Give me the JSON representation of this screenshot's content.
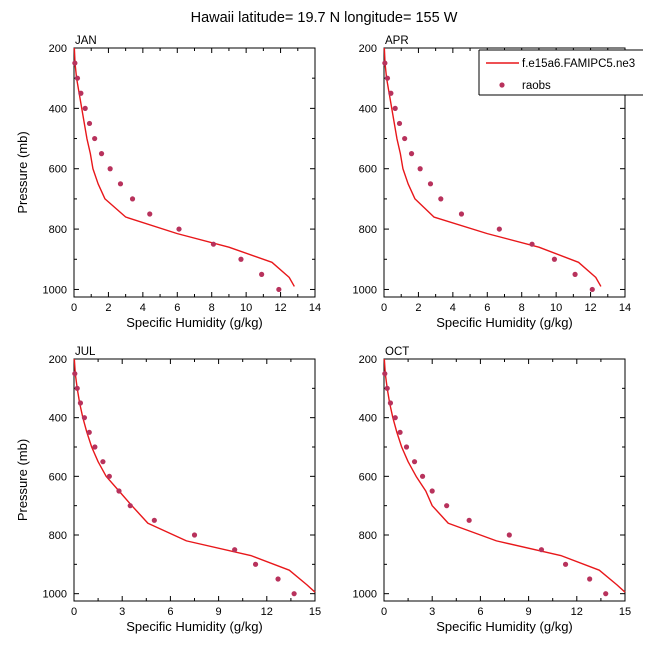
{
  "title": "Hawaii  latitude= 19.7 N longitude= 155 W",
  "legend": {
    "entries": [
      {
        "label": "f.e15a6.FAMIPC5.ne3",
        "color": "#e8171a",
        "kind": "line"
      },
      {
        "label": "raobs",
        "color": "#b8325c",
        "kind": "marker"
      }
    ]
  },
  "chart_data": [
    {
      "type": "line",
      "panel_label": "JAN",
      "xlabel": "Specific Humidity (g/kg)",
      "ylabel": "Pressure (mb)",
      "xlim": [
        0,
        14
      ],
      "ylim": [
        200,
        1025
      ],
      "y_inverted": true,
      "x_ticks": [
        0,
        2,
        4,
        6,
        8,
        10,
        12,
        14
      ],
      "y_ticks": [
        200,
        400,
        600,
        800,
        1000
      ],
      "series": [
        {
          "name": "f.e15a6.FAMIPC5.ne3",
          "style": "line",
          "color": "#e8171a",
          "points": [
            [
              0.02,
              200
            ],
            [
              0.06,
              250
            ],
            [
              0.15,
              300
            ],
            [
              0.3,
              350
            ],
            [
              0.45,
              400
            ],
            [
              0.6,
              450
            ],
            [
              0.75,
              500
            ],
            [
              0.95,
              550
            ],
            [
              1.1,
              600
            ],
            [
              1.4,
              650
            ],
            [
              1.8,
              700
            ],
            [
              3.0,
              760
            ],
            [
              6.0,
              815
            ],
            [
              9.0,
              860
            ],
            [
              11.5,
              910
            ],
            [
              12.5,
              960
            ],
            [
              12.8,
              990
            ]
          ]
        },
        {
          "name": "raobs",
          "style": "marker",
          "color": "#b8325c",
          "points": [
            [
              0.05,
              250
            ],
            [
              0.2,
              300
            ],
            [
              0.4,
              350
            ],
            [
              0.65,
              400
            ],
            [
              0.9,
              450
            ],
            [
              1.2,
              500
            ],
            [
              1.6,
              550
            ],
            [
              2.1,
              600
            ],
            [
              2.7,
              650
            ],
            [
              3.4,
              700
            ],
            [
              4.4,
              750
            ],
            [
              6.1,
              800
            ],
            [
              8.1,
              850
            ],
            [
              9.7,
              900
            ],
            [
              10.9,
              950
            ],
            [
              11.9,
              1000
            ]
          ]
        }
      ]
    },
    {
      "type": "line",
      "panel_label": "APR",
      "xlabel": "Specific Humidity (g/kg)",
      "ylabel": "",
      "xlim": [
        0,
        14
      ],
      "ylim": [
        200,
        1025
      ],
      "y_inverted": true,
      "x_ticks": [
        0,
        2,
        4,
        6,
        8,
        10,
        12,
        14
      ],
      "y_ticks": [
        200,
        400,
        600,
        800,
        1000
      ],
      "series": [
        {
          "name": "f.e15a6.FAMIPC5.ne3",
          "style": "line",
          "color": "#e8171a",
          "points": [
            [
              0.02,
              200
            ],
            [
              0.06,
              250
            ],
            [
              0.15,
              300
            ],
            [
              0.3,
              350
            ],
            [
              0.45,
              400
            ],
            [
              0.6,
              450
            ],
            [
              0.75,
              500
            ],
            [
              0.95,
              550
            ],
            [
              1.1,
              600
            ],
            [
              1.4,
              650
            ],
            [
              1.8,
              700
            ],
            [
              2.9,
              760
            ],
            [
              6.0,
              815
            ],
            [
              9.0,
              860
            ],
            [
              11.3,
              910
            ],
            [
              12.3,
              960
            ],
            [
              12.6,
              990
            ]
          ]
        },
        {
          "name": "raobs",
          "style": "marker",
          "color": "#b8325c",
          "points": [
            [
              0.05,
              250
            ],
            [
              0.2,
              300
            ],
            [
              0.4,
              350
            ],
            [
              0.65,
              400
            ],
            [
              0.9,
              450
            ],
            [
              1.2,
              500
            ],
            [
              1.6,
              550
            ],
            [
              2.1,
              600
            ],
            [
              2.7,
              650
            ],
            [
              3.3,
              700
            ],
            [
              4.5,
              750
            ],
            [
              6.7,
              800
            ],
            [
              8.6,
              850
            ],
            [
              9.9,
              900
            ],
            [
              11.1,
              950
            ],
            [
              12.1,
              1000
            ]
          ]
        }
      ]
    },
    {
      "type": "line",
      "panel_label": "JUL",
      "xlabel": "Specific Humidity (g/kg)",
      "ylabel": "Pressure (mb)",
      "xlim": [
        0,
        15
      ],
      "ylim": [
        200,
        1025
      ],
      "y_inverted": true,
      "x_ticks": [
        0,
        3,
        6,
        9,
        12,
        15
      ],
      "y_ticks": [
        200,
        400,
        600,
        800,
        1000
      ],
      "series": [
        {
          "name": "f.e15a6.FAMIPC5.ne3",
          "style": "line",
          "color": "#e8171a",
          "points": [
            [
              0.02,
              200
            ],
            [
              0.08,
              250
            ],
            [
              0.2,
              300
            ],
            [
              0.35,
              350
            ],
            [
              0.55,
              400
            ],
            [
              0.8,
              450
            ],
            [
              1.1,
              500
            ],
            [
              1.5,
              550
            ],
            [
              2.0,
              600
            ],
            [
              2.8,
              650
            ],
            [
              3.6,
              700
            ],
            [
              4.6,
              760
            ],
            [
              7.0,
              820
            ],
            [
              11.0,
              870
            ],
            [
              13.4,
              920
            ],
            [
              14.5,
              970
            ],
            [
              15.0,
              995
            ]
          ]
        },
        {
          "name": "raobs",
          "style": "marker",
          "color": "#b8325c",
          "points": [
            [
              0.05,
              250
            ],
            [
              0.2,
              300
            ],
            [
              0.4,
              350
            ],
            [
              0.65,
              400
            ],
            [
              0.95,
              450
            ],
            [
              1.3,
              500
            ],
            [
              1.8,
              550
            ],
            [
              2.2,
              600
            ],
            [
              2.8,
              650
            ],
            [
              3.5,
              700
            ],
            [
              5.0,
              750
            ],
            [
              7.5,
              800
            ],
            [
              10.0,
              850
            ],
            [
              11.3,
              900
            ],
            [
              12.7,
              950
            ],
            [
              13.7,
              1000
            ]
          ]
        }
      ]
    },
    {
      "type": "line",
      "panel_label": "OCT",
      "xlabel": "Specific Humidity (g/kg)",
      "ylabel": "",
      "xlim": [
        0,
        15
      ],
      "ylim": [
        200,
        1025
      ],
      "y_inverted": true,
      "x_ticks": [
        0,
        3,
        6,
        9,
        12,
        15
      ],
      "y_ticks": [
        200,
        400,
        600,
        800,
        1000
      ],
      "series": [
        {
          "name": "f.e15a6.FAMIPC5.ne3",
          "style": "line",
          "color": "#e8171a",
          "points": [
            [
              0.02,
              200
            ],
            [
              0.08,
              250
            ],
            [
              0.2,
              300
            ],
            [
              0.35,
              350
            ],
            [
              0.55,
              400
            ],
            [
              0.8,
              450
            ],
            [
              1.1,
              500
            ],
            [
              1.5,
              550
            ],
            [
              2.0,
              600
            ],
            [
              2.6,
              650
            ],
            [
              3.0,
              700
            ],
            [
              4.0,
              760
            ],
            [
              7.0,
              820
            ],
            [
              11.0,
              870
            ],
            [
              13.4,
              920
            ],
            [
              14.5,
              970
            ],
            [
              15.0,
              995
            ]
          ]
        },
        {
          "name": "raobs",
          "style": "marker",
          "color": "#b8325c",
          "points": [
            [
              0.05,
              250
            ],
            [
              0.2,
              300
            ],
            [
              0.4,
              350
            ],
            [
              0.7,
              400
            ],
            [
              1.0,
              450
            ],
            [
              1.4,
              500
            ],
            [
              1.9,
              550
            ],
            [
              2.4,
              600
            ],
            [
              3.0,
              650
            ],
            [
              3.9,
              700
            ],
            [
              5.3,
              750
            ],
            [
              7.8,
              800
            ],
            [
              9.8,
              850
            ],
            [
              11.3,
              900
            ],
            [
              12.8,
              950
            ],
            [
              13.8,
              1000
            ]
          ]
        }
      ]
    }
  ]
}
